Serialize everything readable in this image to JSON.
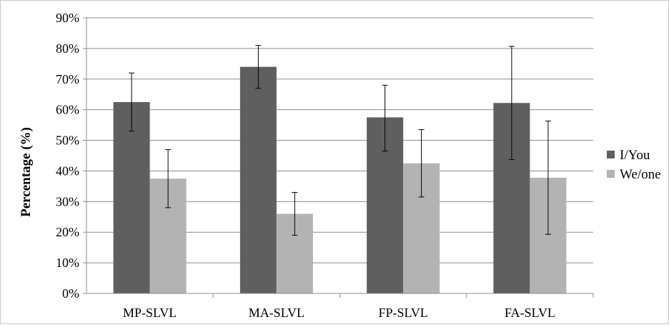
{
  "chart_data": {
    "type": "bar",
    "title": "",
    "xlabel": "",
    "ylabel": "Percentage (%)",
    "ylim": [
      0,
      90
    ],
    "yticks": [
      "0%",
      "10%",
      "20%",
      "30%",
      "40%",
      "50%",
      "60%",
      "70%",
      "80%",
      "90%"
    ],
    "categories": [
      "MP-SLVL",
      "MA-SLVL",
      "FP-SLVL",
      "FA-SLVL"
    ],
    "series": [
      {
        "name": "I/You",
        "color": "#5f5f5f",
        "values": [
          62.5,
          74,
          57.5,
          62.2
        ],
        "error_low": [
          53,
          67,
          46.5,
          43.7
        ],
        "error_high": [
          72,
          81,
          68,
          80.7
        ]
      },
      {
        "name": "We/one",
        "color": "#b3b3b3",
        "values": [
          37.5,
          26,
          42.5,
          37.8
        ],
        "error_low": [
          28,
          19,
          31.5,
          19.3
        ],
        "error_high": [
          47,
          33,
          53.5,
          56.3
        ]
      }
    ],
    "grid": true,
    "legend": "right"
  }
}
